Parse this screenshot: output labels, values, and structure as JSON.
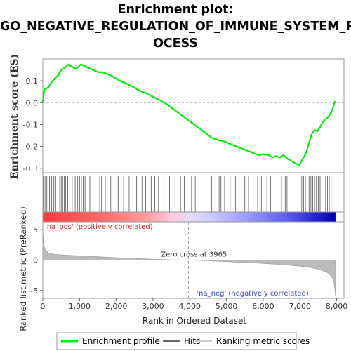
{
  "title_line1": "Enrichment plot:",
  "title_line2": "GO_NEGATIVE_REGULATION_OF_IMMUNE_SYSTEM_PR",
  "title_line3": "OCESS",
  "chart_data": {
    "type": "line",
    "top_panel": {
      "ylabel": "Enrichment score (ES)",
      "ylim": [
        -0.32,
        0.2
      ],
      "yticks": [
        0.1,
        0.0,
        -0.1,
        -0.2,
        -0.3
      ],
      "ytick_labels": [
        "0.1",
        "0.0",
        "-0.1",
        "-0.2",
        "-0.3"
      ],
      "series": [
        {
          "name": "Enrichment profile",
          "color": "#00ee00",
          "x": [
            0,
            40,
            150,
            250,
            340,
            420,
            480,
            560,
            630,
            700,
            780,
            850,
            900,
            980,
            1030,
            1100,
            1200,
            1300,
            1400,
            1500,
            1580,
            1700,
            1800,
            1900,
            2000,
            2100,
            2200,
            2300,
            2400,
            2500,
            2600,
            2700,
            2800,
            2900,
            3000,
            3200,
            3400,
            3600,
            3800,
            4000,
            4200,
            4400,
            4600,
            4750,
            4900,
            5050,
            5200,
            5350,
            5500,
            5650,
            5800,
            5900,
            6000,
            6150,
            6250,
            6350,
            6450,
            6550,
            6650,
            6750,
            6850,
            6980,
            7050,
            7120,
            7180,
            7220,
            7280,
            7330,
            7400,
            7480,
            7550,
            7620,
            7700,
            7770,
            7830,
            7900,
            7950
          ],
          "y": [
            0.0,
            0.06,
            0.07,
            0.095,
            0.115,
            0.125,
            0.145,
            0.155,
            0.165,
            0.175,
            0.165,
            0.16,
            0.155,
            0.165,
            0.175,
            0.172,
            0.162,
            0.155,
            0.148,
            0.14,
            0.14,
            0.135,
            0.128,
            0.12,
            0.11,
            0.1,
            0.093,
            0.086,
            0.077,
            0.068,
            0.058,
            0.05,
            0.045,
            0.035,
            0.027,
            0.01,
            -0.01,
            -0.035,
            -0.06,
            -0.085,
            -0.11,
            -0.135,
            -0.16,
            -0.17,
            -0.175,
            -0.185,
            -0.195,
            -0.205,
            -0.215,
            -0.225,
            -0.235,
            -0.24,
            -0.235,
            -0.24,
            -0.25,
            -0.245,
            -0.25,
            -0.24,
            -0.255,
            -0.265,
            -0.275,
            -0.285,
            -0.265,
            -0.245,
            -0.225,
            -0.2,
            -0.165,
            -0.14,
            -0.125,
            -0.13,
            -0.11,
            -0.09,
            -0.075,
            -0.065,
            -0.05,
            -0.025,
            0.008
          ]
        }
      ]
    },
    "hits": [
      20,
      60,
      110,
      180,
      240,
      300,
      350,
      410,
      460,
      500,
      540,
      580,
      620,
      680,
      720,
      800,
      880,
      950,
      1000,
      1050,
      1100,
      1150,
      1280,
      1550,
      1600,
      1700,
      1850,
      2050,
      2200,
      2350,
      2550,
      2700,
      2800,
      2950,
      3050,
      3150,
      3300,
      3450,
      3600,
      3750,
      3850,
      4050,
      4150,
      4600,
      4800,
      4850,
      4950,
      5100,
      5250,
      5400,
      5500,
      5600,
      5800,
      5850,
      5950,
      6050,
      6100,
      6200,
      6300,
      6500,
      6600,
      6650,
      7050,
      7100,
      7150,
      7200,
      7250,
      7300,
      7350,
      7400,
      7450,
      7500,
      7550,
      7600,
      7700,
      7750,
      7800,
      7850,
      7900
    ],
    "middle_panel": {
      "ylabel": "Ranked list metric (PreRanked)",
      "ylim": [
        -6.3,
        6.3
      ],
      "yticks": [
        5,
        0,
        -5
      ],
      "ytick_labels": [
        "5",
        "0",
        "-5"
      ],
      "metric_curve": {
        "rank": [
          0,
          20,
          60,
          150,
          300,
          500,
          1000,
          1500,
          2000,
          2500,
          3000,
          3500,
          3965,
          4500,
          5000,
          5500,
          6000,
          6500,
          7000,
          7300,
          7500,
          7700,
          7800,
          7880,
          7920,
          7950,
          7970
        ],
        "value": [
          5.0,
          2.8,
          1.8,
          1.2,
          0.95,
          0.85,
          0.7,
          0.55,
          0.4,
          0.28,
          0.15,
          0.06,
          0.0,
          -0.1,
          -0.25,
          -0.4,
          -0.55,
          -0.75,
          -1.0,
          -1.25,
          -1.5,
          -1.9,
          -2.3,
          -2.9,
          -3.5,
          -4.5,
          -6.0
        ]
      },
      "zero_cross_label": "Zero cross at 3965",
      "zero_cross": 3965,
      "pos_label": "'na_pos' (positively correlated)",
      "neg_label": "'na_neg' (negatively correlated)"
    },
    "xlabel": "Rank in Ordered Dataset",
    "xlim": [
      0,
      8200
    ],
    "xticks": [
      0,
      1000,
      2000,
      3000,
      4000,
      5000,
      6000,
      7000,
      8000
    ],
    "xtick_labels": [
      "0",
      "1,000",
      "2,000",
      "3,000",
      "4,000",
      "5,000",
      "6,000",
      "7,000",
      "8,000"
    ],
    "n_ranks": 7970,
    "legend": {
      "placement": "bottom",
      "items": [
        {
          "name": "Enrichment profile",
          "color": "#00ee00"
        },
        {
          "name": "Hits",
          "color": "#666666"
        },
        {
          "name": "Ranking metric scores",
          "color": "#cccccc"
        }
      ]
    }
  }
}
